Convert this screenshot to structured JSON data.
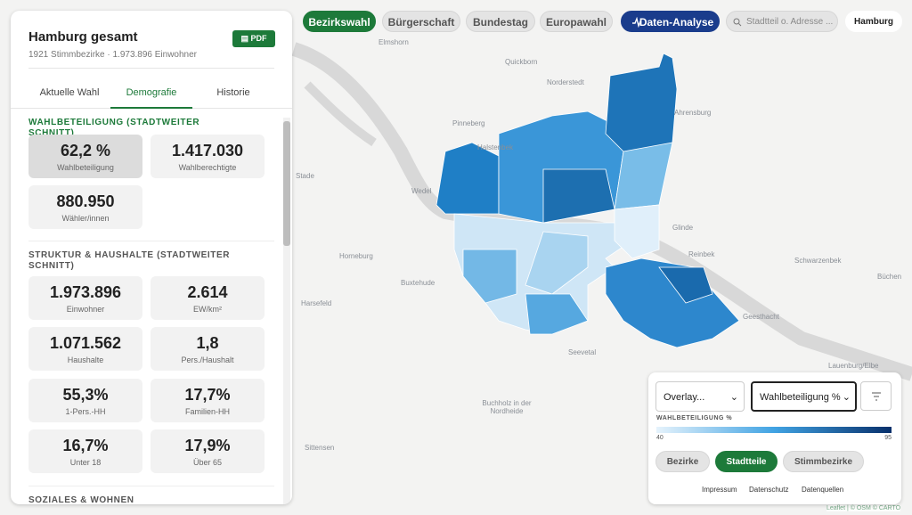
{
  "top_nav": {
    "buttons": [
      "Bezirkswahl",
      "Bürgerschaft",
      "Bundestag",
      "Europawahl",
      "Daten-Analyse"
    ],
    "search_placeholder": "Stadtteil o. Adresse ...",
    "location": "Hamburg"
  },
  "panel": {
    "title": "Hamburg gesamt",
    "subtitle": "1921 Stimmbezirke · 1.973.896 Einwohner",
    "pdf": "PDF",
    "tabs": [
      "Aktuelle Wahl",
      "Demografie",
      "Historie"
    ],
    "sections": [
      {
        "heading": "WAHLBETEILIGUNG (STADTWEITER SCHNITT)",
        "cards": [
          {
            "value": "62,2 %",
            "label": "Wahlbeteiligung"
          },
          {
            "value": "1.417.030",
            "label": "Wahlberechtigte"
          },
          {
            "value": "880.950",
            "label": "Wähler/innen"
          }
        ]
      },
      {
        "heading": "STRUKTUR & HAUSHALTE (STADTWEITER SCHNITT)",
        "cards": [
          {
            "value": "1.973.896",
            "label": "Einwohner"
          },
          {
            "value": "2.614",
            "label": "EW/km²"
          },
          {
            "value": "1.071.562",
            "label": "Haushalte"
          },
          {
            "value": "1,8",
            "label": "Pers./Haushalt"
          },
          {
            "value": "55,3%",
            "label": "1-Pers.-HH"
          },
          {
            "value": "17,7%",
            "label": "Familien-HH"
          },
          {
            "value": "16,7%",
            "label": "Unter 18"
          },
          {
            "value": "17,9%",
            "label": "Über 65"
          }
        ]
      },
      {
        "heading": "SOZIALES & WOHNEN"
      }
    ]
  },
  "map": {
    "places": [
      "Elmshorn",
      "Quickborn",
      "Norderstedt",
      "Pinneberg",
      "Ahrensburg",
      "Halstenbek",
      "Stade",
      "Wedel",
      "Glinde",
      "Reinbek",
      "Horneburg",
      "Schwarzenbek",
      "Buxtehude",
      "Büchen",
      "Harsefeld",
      "Geesthacht",
      "Seevetal",
      "Lauenburg/Elbe",
      "Buchholz in der Nordheide",
      "Sittensen"
    ],
    "attribution": "Leaflet | © OSM © CARTO"
  },
  "controls": {
    "overlay": "Overlay...",
    "metric": "Wahlbeteiligung %",
    "legend_title": "WAHLBETEILIGUNG %",
    "legend_min": 40,
    "legend_max": 95,
    "levels": [
      "Bezirke",
      "Stadtteile",
      "Stimmbezirke"
    ],
    "links": [
      "Impressum",
      "Datenschutz",
      "Datenquellen"
    ]
  }
}
